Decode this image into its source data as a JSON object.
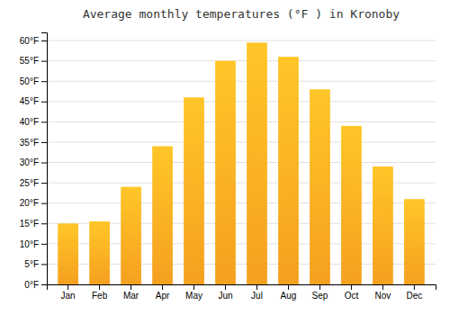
{
  "chart_data": {
    "type": "bar",
    "title": "Average monthly temperatures (°F ) in Kronoby",
    "categories": [
      "Jan",
      "Feb",
      "Mar",
      "Apr",
      "May",
      "Jun",
      "Jul",
      "Aug",
      "Sep",
      "Oct",
      "Nov",
      "Dec"
    ],
    "values": [
      15,
      15.5,
      24,
      34,
      46,
      55,
      59.5,
      56,
      48,
      39,
      29,
      21
    ],
    "color": "#F5A020",
    "ylim": [
      0,
      62
    ],
    "yticks": [
      {
        "value": 0,
        "label": "0°F"
      },
      {
        "value": 5,
        "label": "5°F"
      },
      {
        "value": 10,
        "label": "10°F"
      },
      {
        "value": 15,
        "label": "15°F"
      },
      {
        "value": 20,
        "label": "20°F"
      },
      {
        "value": 25,
        "label": "25°F"
      },
      {
        "value": 30,
        "label": "30°F"
      },
      {
        "value": 35,
        "label": "35°F"
      },
      {
        "value": 40,
        "label": "40°F"
      },
      {
        "value": 45,
        "label": "45°F"
      },
      {
        "value": 50,
        "label": "50°F"
      },
      {
        "value": 55,
        "label": "55°F"
      },
      {
        "value": 60,
        "label": "60°F"
      }
    ],
    "grid": true
  }
}
